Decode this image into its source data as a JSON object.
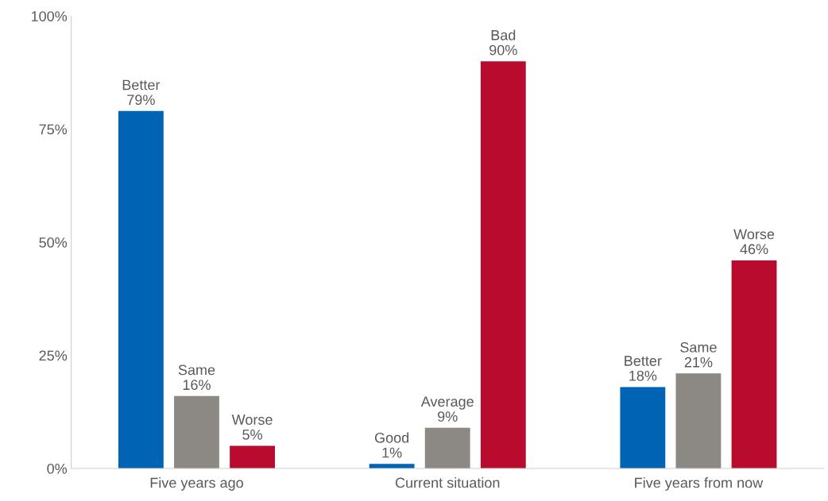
{
  "chart_data": {
    "type": "bar",
    "categories": [
      "Five years ago",
      "Current situation",
      "Five years from now"
    ],
    "series": [
      {
        "color": "#0063b4",
        "values": [
          79,
          1,
          18
        ],
        "value_labels": [
          "Better\n79%",
          "Good\n1%",
          "Better\n18%"
        ]
      },
      {
        "color": "#8c8985",
        "values": [
          16,
          9,
          21
        ],
        "value_labels": [
          "Same\n16%",
          "Average\n9%",
          "Same\n21%"
        ]
      },
      {
        "color": "#b90b2e",
        "values": [
          5,
          90,
          46
        ],
        "value_labels": [
          "Worse\n5%",
          "Bad\n90%",
          "Worse\n46%"
        ]
      }
    ],
    "ylim": [
      0,
      100
    ],
    "yticks": [
      {
        "value": 0,
        "label": "0%"
      },
      {
        "value": 25,
        "label": "25%"
      },
      {
        "value": 50,
        "label": "50%"
      },
      {
        "value": 75,
        "label": "75%"
      },
      {
        "value": 100,
        "label": "100%"
      }
    ],
    "grid": false,
    "legend": false
  }
}
